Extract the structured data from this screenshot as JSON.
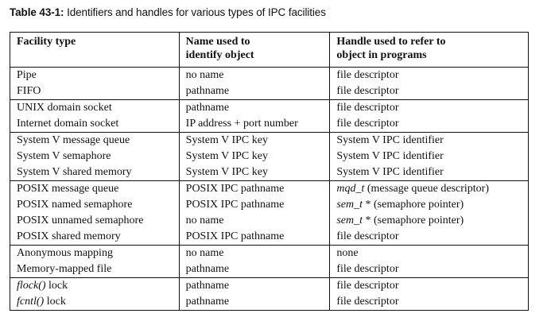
{
  "caption": {
    "label": "Table 43-1:",
    "text": " Identifiers and handles for various types of IPC facilities"
  },
  "table": {
    "headers": [
      {
        "line1": "Facility type",
        "line2": ""
      },
      {
        "line1": "Name used to",
        "line2": "identify object"
      },
      {
        "line1": "Handle used to refer to",
        "line2": "object in programs"
      }
    ],
    "groups": [
      [
        {
          "facility": "Pipe",
          "facility_italic": "",
          "name": "no name",
          "handle_italic": "",
          "handle": "file descriptor"
        },
        {
          "facility": "FIFO",
          "facility_italic": "",
          "name": "pathname",
          "handle_italic": "",
          "handle": "file descriptor"
        }
      ],
      [
        {
          "facility": "UNIX domain socket",
          "facility_italic": "",
          "name": "pathname",
          "handle_italic": "",
          "handle": "file descriptor"
        },
        {
          "facility": "Internet domain socket",
          "facility_italic": "",
          "name": "IP address + port number",
          "handle_italic": "",
          "handle": "file descriptor"
        }
      ],
      [
        {
          "facility": "System V message queue",
          "facility_italic": "",
          "name": "System V IPC key",
          "handle_italic": "",
          "handle": "System V IPC identifier"
        },
        {
          "facility": "System V semaphore",
          "facility_italic": "",
          "name": "System V IPC key",
          "handle_italic": "",
          "handle": "System V IPC identifier"
        },
        {
          "facility": "System V shared memory",
          "facility_italic": "",
          "name": "System V IPC key",
          "handle_italic": "",
          "handle": "System V IPC identifier"
        }
      ],
      [
        {
          "facility": "POSIX message queue",
          "facility_italic": "",
          "name": "POSIX IPC pathname",
          "handle_italic": "mqd_t",
          "handle": " (message queue descriptor)"
        },
        {
          "facility": "POSIX named semaphore",
          "facility_italic": "",
          "name": "POSIX IPC pathname",
          "handle_italic": "sem_t",
          "handle": " * (semaphore pointer)"
        },
        {
          "facility": "POSIX unnamed semaphore",
          "facility_italic": "",
          "name": "no name",
          "handle_italic": "sem_t",
          "handle": " * (semaphore pointer)"
        },
        {
          "facility": "POSIX shared memory",
          "facility_italic": "",
          "name": "POSIX IPC pathname",
          "handle_italic": "",
          "handle": "file descriptor"
        }
      ],
      [
        {
          "facility": "Anonymous mapping",
          "facility_italic": "",
          "name": "no name",
          "handle_italic": "",
          "handle": "none"
        },
        {
          "facility": "Memory-mapped file",
          "facility_italic": "",
          "name": "pathname",
          "handle_italic": "",
          "handle": "file descriptor"
        }
      ],
      [
        {
          "facility": " lock",
          "facility_italic": "flock()",
          "name": "pathname",
          "handle_italic": "",
          "handle": "file descriptor"
        },
        {
          "facility": " lock",
          "facility_italic": "fcntl()",
          "name": "pathname",
          "handle_italic": "",
          "handle": "file descriptor"
        }
      ]
    ]
  }
}
